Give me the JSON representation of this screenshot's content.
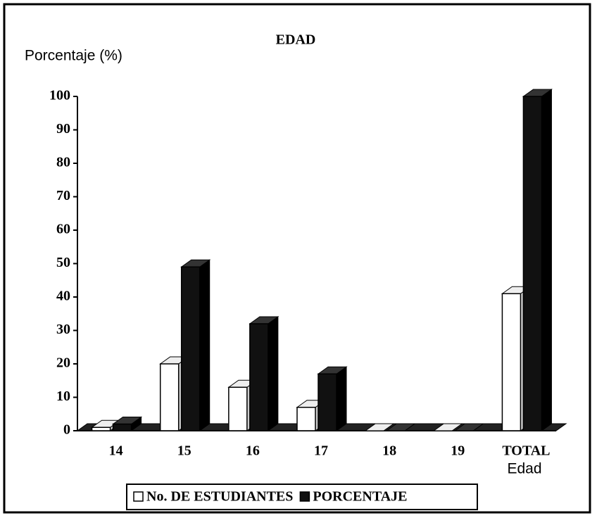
{
  "chart_data": {
    "type": "bar3d",
    "title": "EDAD",
    "y_label": "Porcentaje (%)",
    "x_label": "Edad",
    "categories": [
      "14",
      "15",
      "16",
      "17",
      "18",
      "19",
      "TOTAL"
    ],
    "series": [
      {
        "name": "No. DE ESTUDIANTES",
        "color": "#ffffff",
        "values": [
          1,
          20,
          13,
          7,
          0,
          0,
          41
        ]
      },
      {
        "name": "PORCENTAJE",
        "color": "#111111",
        "values": [
          2,
          49,
          32,
          17,
          0,
          0,
          100
        ]
      }
    ],
    "ylim": [
      0,
      100
    ],
    "yticks": [
      0,
      10,
      20,
      30,
      40,
      50,
      60,
      70,
      80,
      90,
      100
    ]
  }
}
